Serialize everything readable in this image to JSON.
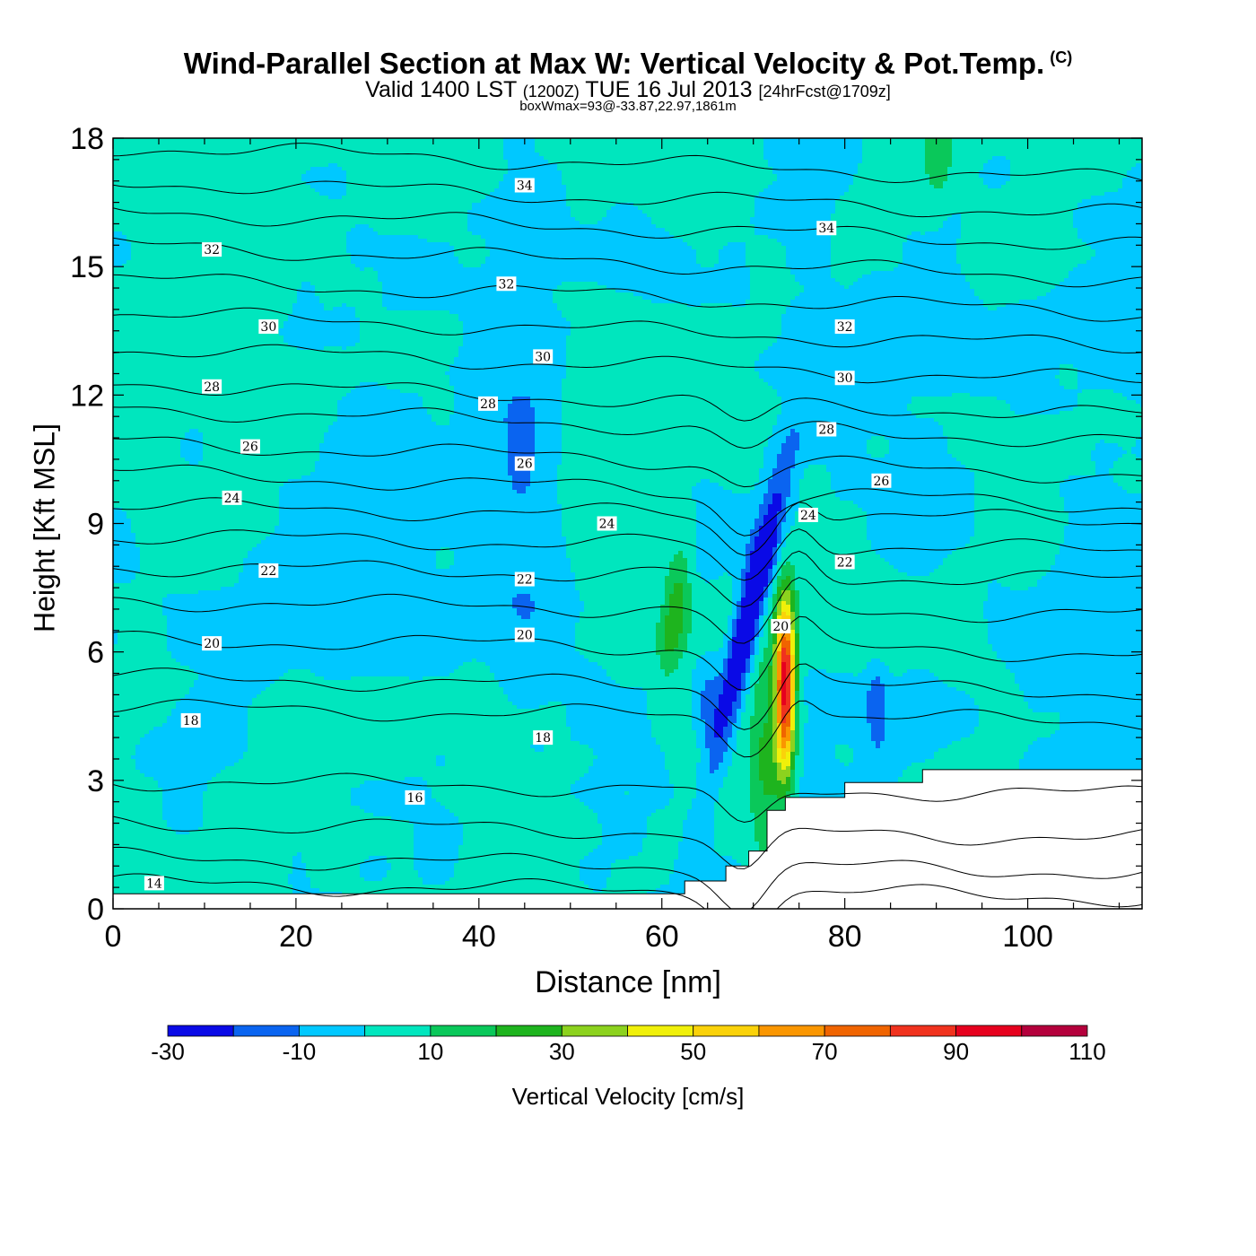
{
  "title": {
    "main": "Wind-Parallel Section at Max W: Vertical Velocity & Pot.Temp.",
    "copyright_mark": "(C)",
    "valid_prefix": "Valid 1400 LST",
    "valid_utc": "(1200Z)",
    "valid_date": "TUE 16 Jul 2013",
    "forecast": "[24hrFcst@1709z]",
    "boxwmax": "boxWmax=93@-33.87,22.97,1861m"
  },
  "chart_data": {
    "type": "heatmap",
    "xlabel": "Distance [nm]",
    "ylabel": "Height [Kft MSL]",
    "xlim": [
      0,
      112.5
    ],
    "ylim": [
      0,
      18
    ],
    "xticks": [
      0,
      20,
      40,
      60,
      80,
      100
    ],
    "yticks": [
      0,
      3,
      6,
      9,
      12,
      15,
      18
    ],
    "colorbar": {
      "title": "Vertical Velocity [cm/s]",
      "bounds": [
        -30,
        -20,
        -10,
        0,
        10,
        20,
        30,
        40,
        50,
        60,
        70,
        80,
        90,
        100,
        110
      ],
      "tick_labels": [
        "-30",
        "-10",
        "10",
        "30",
        "50",
        "70",
        "90",
        "110"
      ],
      "colors": [
        "#0a0ae6",
        "#0a64f0",
        "#00c8ff",
        "#00e6be",
        "#0ac85a",
        "#1eb41e",
        "#8cd21e",
        "#f0f00a",
        "#fad20a",
        "#fa9600",
        "#f06400",
        "#f0321e",
        "#e6001e",
        "#b4003c"
      ]
    },
    "w_features": [
      {
        "kind": "updraft",
        "x": 73.5,
        "y": 5.2,
        "max_w": 93
      },
      {
        "kind": "downdraft",
        "x": 65,
        "y": 5.5,
        "min_w": -20
      },
      {
        "kind": "downdraft",
        "x": 71,
        "y": 8.5,
        "min_w": -30
      },
      {
        "kind": "downdraft",
        "x": 83.5,
        "y": 4.8,
        "min_w": -20
      }
    ],
    "terrain": [
      [
        0,
        0.35
      ],
      [
        62.5,
        0.35
      ],
      [
        62.5,
        0.65
      ],
      [
        67,
        0.65
      ],
      [
        67,
        1.0
      ],
      [
        69.5,
        1.0
      ],
      [
        69.5,
        1.35
      ],
      [
        71.5,
        1.35
      ],
      [
        71.5,
        2.3
      ],
      [
        73.5,
        2.3
      ],
      [
        73.5,
        2.6
      ],
      [
        80,
        2.6
      ],
      [
        80,
        2.95
      ],
      [
        88.5,
        2.95
      ],
      [
        88.5,
        3.25
      ],
      [
        112.5,
        3.25
      ]
    ],
    "theta_isentropes": [
      {
        "theta": 14,
        "y0": 0.6
      },
      {
        "theta": 15,
        "y0": 1.2
      },
      {
        "theta": 16,
        "y0": 2.0
      },
      {
        "theta": 17,
        "y0": 3.0
      },
      {
        "theta": 18,
        "y0": 4.7
      },
      {
        "theta": 19,
        "y0": 5.4
      },
      {
        "theta": 20,
        "y0": 6.3
      },
      {
        "theta": 21,
        "y0": 7.2
      },
      {
        "theta": 22,
        "y0": 8.0
      },
      {
        "theta": 23,
        "y0": 8.7
      },
      {
        "theta": 24,
        "y0": 9.4
      },
      {
        "theta": 25,
        "y0": 10.2
      },
      {
        "theta": 26,
        "y0": 10.9
      },
      {
        "theta": 27,
        "y0": 11.7
      },
      {
        "theta": 28,
        "y0": 12.3
      },
      {
        "theta": 29,
        "y0": 13.1
      },
      {
        "theta": 30,
        "y0": 13.9
      },
      {
        "theta": 31,
        "y0": 14.7
      },
      {
        "theta": 32,
        "y0": 15.5
      },
      {
        "theta": 33,
        "y0": 16.3
      },
      {
        "theta": 34,
        "y0": 17.0
      },
      {
        "theta": 35,
        "y0": 17.8
      }
    ],
    "isentrope_labels": [
      {
        "text": "34",
        "x": 45,
        "y": 16.9
      },
      {
        "text": "34",
        "x": 78,
        "y": 15.9
      },
      {
        "text": "32",
        "x": 10.8,
        "y": 15.4
      },
      {
        "text": "32",
        "x": 43,
        "y": 14.6
      },
      {
        "text": "32",
        "x": 80,
        "y": 13.6
      },
      {
        "text": "30",
        "x": 17,
        "y": 13.6
      },
      {
        "text": "30",
        "x": 47,
        "y": 12.9
      },
      {
        "text": "30",
        "x": 80,
        "y": 12.4
      },
      {
        "text": "28",
        "x": 10.8,
        "y": 12.2
      },
      {
        "text": "28",
        "x": 41,
        "y": 11.8
      },
      {
        "text": "28",
        "x": 78,
        "y": 11.2
      },
      {
        "text": "26",
        "x": 15,
        "y": 10.8
      },
      {
        "text": "26",
        "x": 45,
        "y": 10.4
      },
      {
        "text": "26",
        "x": 84,
        "y": 10.0
      },
      {
        "text": "24",
        "x": 13,
        "y": 9.6
      },
      {
        "text": "24",
        "x": 54,
        "y": 9.0
      },
      {
        "text": "24",
        "x": 76,
        "y": 9.2
      },
      {
        "text": "22",
        "x": 17,
        "y": 7.9
      },
      {
        "text": "22",
        "x": 45,
        "y": 7.7
      },
      {
        "text": "22",
        "x": 80,
        "y": 8.1
      },
      {
        "text": "20",
        "x": 10.8,
        "y": 6.2
      },
      {
        "text": "20",
        "x": 45,
        "y": 6.4
      },
      {
        "text": "20",
        "x": 73,
        "y": 6.6
      },
      {
        "text": "18",
        "x": 8.5,
        "y": 4.4
      },
      {
        "text": "18",
        "x": 47,
        "y": 4.0
      },
      {
        "text": "16",
        "x": 33,
        "y": 2.6
      },
      {
        "text": "14",
        "x": 4.5,
        "y": 0.6
      }
    ]
  }
}
